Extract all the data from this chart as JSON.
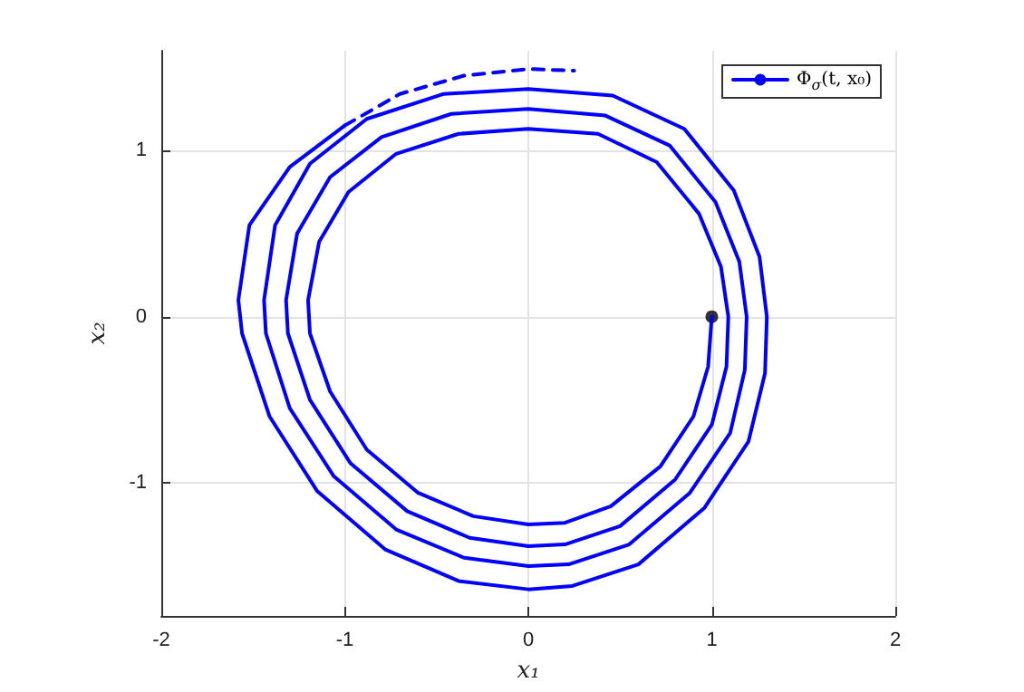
{
  "chart_data": {
    "type": "line",
    "xlabel": "x₁",
    "ylabel": "x₂",
    "xlim": [
      -2,
      2
    ],
    "xticks": [
      -2,
      -1,
      0,
      1,
      2
    ],
    "ylim": [
      -1.8,
      1.6
    ],
    "yticks": [
      -1,
      0,
      1
    ],
    "grid": true,
    "legend": "top right",
    "marker": "none",
    "series": [
      {
        "name": "Φ$_{σ}$(t, x₀)",
        "color": "#0000ff",
        "line_style": "solid",
        "x": [
          1,
          0.98,
          0.9,
          0.72,
          0.45,
          0.2,
          0,
          -0.3,
          -0.6,
          -0.88,
          -1.08,
          -1.19,
          -1.2,
          -1.14,
          -0.98,
          -0.72,
          -0.38,
          0,
          0.38,
          0.7,
          0.93,
          1.05,
          1.09,
          1.08,
          1.0,
          0.8,
          0.5,
          0.2,
          0,
          -0.32,
          -0.66,
          -0.97,
          -1.19,
          -1.31,
          -1.32,
          -1.26,
          -1.08,
          -0.8,
          -0.42,
          0,
          0.42,
          0.77,
          1.02,
          1.15,
          1.19,
          1.18,
          1.1,
          0.88,
          0.55,
          0.22,
          0,
          -0.35,
          -0.72,
          -1.06,
          -1.3,
          -1.43,
          -1.44,
          -1.38,
          -1.19,
          -0.88,
          -0.46,
          0,
          0.46,
          0.85,
          1.12,
          1.26,
          1.3,
          1.29,
          1.2,
          0.96,
          0.6,
          0.24,
          0,
          -0.38,
          -0.78,
          -1.15,
          -1.41,
          -1.56,
          -1.58,
          -1.52,
          -1.3,
          -1.0
        ],
        "values": [
          0,
          -0.3,
          -0.6,
          -0.9,
          -1.14,
          -1.24,
          -1.25,
          -1.2,
          -1.06,
          -0.8,
          -0.45,
          -0.1,
          0.1,
          0.45,
          0.75,
          0.98,
          1.1,
          1.13,
          1.1,
          0.93,
          0.62,
          0.3,
          0,
          -0.3,
          -0.65,
          -0.98,
          -1.26,
          -1.37,
          -1.38,
          -1.33,
          -1.17,
          -0.88,
          -0.5,
          -0.1,
          0.1,
          0.5,
          0.84,
          1.08,
          1.22,
          1.25,
          1.21,
          1.03,
          0.69,
          0.33,
          0,
          -0.32,
          -0.7,
          -1.06,
          -1.37,
          -1.49,
          -1.5,
          -1.45,
          -1.28,
          -0.96,
          -0.55,
          -0.1,
          0.1,
          0.55,
          0.92,
          1.19,
          1.34,
          1.37,
          1.33,
          1.13,
          0.76,
          0.36,
          0,
          -0.34,
          -0.75,
          -1.15,
          -1.49,
          -1.62,
          -1.64,
          -1.59,
          -1.4,
          -1.05,
          -0.6,
          -0.1,
          0.1,
          0.55,
          0.9,
          1.15
        ]
      },
      {
        "color": "#0000ff",
        "line_style": "dashed",
        "x": [
          -1.0,
          -0.7,
          -0.35,
          0,
          0.25
        ],
        "values": [
          1.15,
          1.34,
          1.45,
          1.49,
          1.48
        ]
      },
      {
        "type": "scatter",
        "marker": "circle",
        "color": "#000000",
        "x": [
          1
        ],
        "values": [
          0
        ]
      }
    ]
  }
}
